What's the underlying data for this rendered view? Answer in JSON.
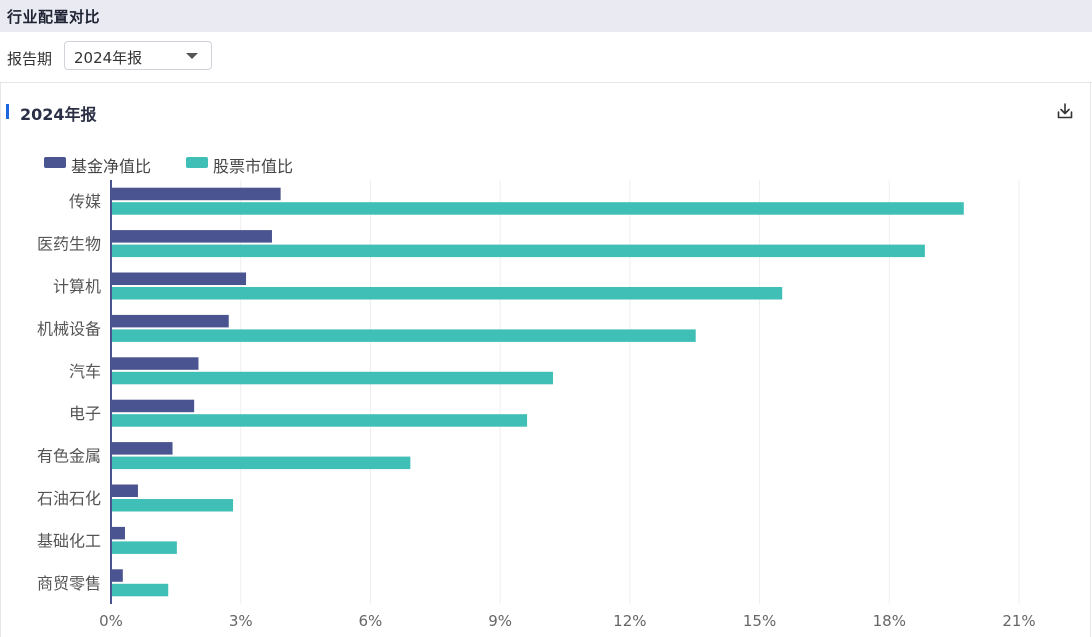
{
  "header": {
    "title": "行业配置对比"
  },
  "filter": {
    "label": "报告期",
    "selected": "2024年报"
  },
  "section": {
    "title": "2024年报",
    "download_icon": "download-icon"
  },
  "colors": {
    "fund": "#4a5490",
    "stock": "#3fbfb5",
    "axis": "#4a5490",
    "grid": "#eeeeee",
    "accent": "#1d66e0"
  },
  "chart_data": {
    "type": "bar",
    "orientation": "horizontal",
    "categories": [
      "传媒",
      "医药生物",
      "计算机",
      "机械设备",
      "汽车",
      "电子",
      "有色金属",
      "石油石化",
      "基础化工",
      "商贸零售"
    ],
    "series": [
      {
        "name": "基金净值比",
        "values": [
          3.9,
          3.7,
          3.1,
          2.7,
          2.0,
          1.9,
          1.4,
          0.6,
          0.3,
          0.25
        ]
      },
      {
        "name": "股票市值比",
        "values": [
          19.7,
          18.8,
          15.5,
          13.5,
          10.2,
          9.6,
          6.9,
          2.8,
          1.5,
          1.3
        ]
      }
    ],
    "x_ticks": [
      "0%",
      "3%",
      "6%",
      "9%",
      "12%",
      "15%",
      "18%",
      "21%"
    ],
    "xlim": [
      0,
      21
    ],
    "grid": true,
    "legend_position": "top-left"
  }
}
